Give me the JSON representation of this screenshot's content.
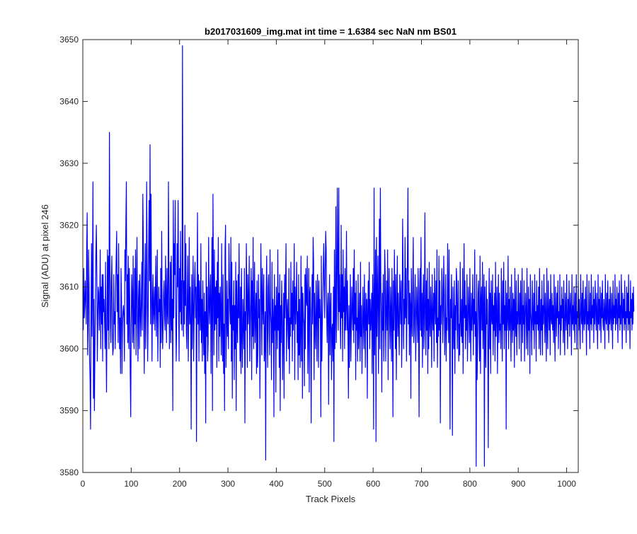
{
  "chart_data": {
    "type": "line",
    "title": "b2017031609_img.mat int time = 1.6384 sec  NaN nm BS01",
    "xlabel": "Track Pixels",
    "ylabel": "Signal (ADU) at pixel 246",
    "xlim": [
      0,
      1024
    ],
    "ylim": [
      3580,
      3650
    ],
    "x_ticks": [
      "0",
      "100",
      "200",
      "300",
      "400",
      "500",
      "600",
      "700",
      "800",
      "900",
      "1000"
    ],
    "y_ticks": [
      "3580",
      "3590",
      "3600",
      "3610",
      "3620",
      "3630",
      "3640",
      "3650"
    ],
    "grid": false,
    "series_color": "#0000ff",
    "series": [
      {
        "x_start": 1,
        "x_step": 1,
        "values": [
          3603,
          3613,
          3605,
          3607,
          3611,
          3608,
          3604,
          3616,
          3622,
          3599,
          3604,
          3616,
          3610,
          3598,
          3595,
          3587,
          3606,
          3617,
          3602,
          3612,
          3627,
          3592,
          3608,
          3590,
          3600,
          3607,
          3615,
          3620,
          3612,
          3598,
          3605,
          3610,
          3609,
          3603,
          3607,
          3616,
          3600,
          3610,
          3604,
          3612,
          3598,
          3612,
          3606,
          3608,
          3604,
          3600,
          3614,
          3602,
          3593,
          3606,
          3616,
          3603,
          3615,
          3600,
          3635,
          3615,
          3604,
          3601,
          3611,
          3615,
          3604,
          3599,
          3600,
          3612,
          3604,
          3606,
          3600,
          3610,
          3615,
          3619,
          3606,
          3612,
          3601,
          3617,
          3607,
          3600,
          3605,
          3596,
          3613,
          3608,
          3596,
          3604,
          3606,
          3607,
          3605,
          3598,
          3616,
          3611,
          3620,
          3627,
          3604,
          3612,
          3601,
          3615,
          3600,
          3613,
          3608,
          3596,
          3589,
          3604,
          3612,
          3608,
          3601,
          3615,
          3603,
          3600,
          3613,
          3604,
          3616,
          3599,
          3609,
          3618,
          3604,
          3598,
          3608,
          3611,
          3600,
          3612,
          3606,
          3602,
          3608,
          3614,
          3603,
          3625,
          3618,
          3605,
          3596,
          3609,
          3617,
          3600,
          3607,
          3627,
          3613,
          3598,
          3605,
          3616,
          3624,
          3611,
          3633,
          3604,
          3625,
          3609,
          3598,
          3608,
          3612,
          3604,
          3606,
          3610,
          3603,
          3609,
          3615,
          3602,
          3607,
          3616,
          3598,
          3604,
          3610,
          3606,
          3608,
          3597,
          3613,
          3601,
          3619,
          3606,
          3600,
          3604,
          3609,
          3611,
          3605,
          3603,
          3615,
          3608,
          3601,
          3613,
          3606,
          3604,
          3627,
          3612,
          3600,
          3606,
          3614,
          3601,
          3615,
          3603,
          3608,
          3590,
          3624,
          3605,
          3617,
          3612,
          3624,
          3607,
          3598,
          3604,
          3617,
          3610,
          3624,
          3608,
          3598,
          3613,
          3606,
          3619,
          3604,
          3611,
          3603,
          3649,
          3612,
          3602,
          3611,
          3604,
          3620,
          3607,
          3617,
          3603,
          3600,
          3609,
          3615,
          3598,
          3606,
          3618,
          3604,
          3610,
          3604,
          3587,
          3612,
          3600,
          3608,
          3615,
          3598,
          3605,
          3611,
          3614,
          3605,
          3610,
          3585,
          3608,
          3622,
          3604,
          3612,
          3598,
          3611,
          3606,
          3603,
          3617,
          3601,
          3608,
          3598,
          3611,
          3604,
          3599,
          3609,
          3596,
          3606,
          3588,
          3614,
          3602,
          3610,
          3598,
          3601,
          3618,
          3607,
          3604,
          3610,
          3612,
          3596,
          3608,
          3618,
          3590,
          3625,
          3611,
          3599,
          3616,
          3603,
          3610,
          3604,
          3611,
          3597,
          3614,
          3605,
          3618,
          3598,
          3609,
          3602,
          3610,
          3606,
          3599,
          3617,
          3603,
          3598,
          3612,
          3596,
          3604,
          3590,
          3616,
          3620,
          3597,
          3604,
          3611,
          3602,
          3608,
          3600,
          3617,
          3611,
          3606,
          3604,
          3618,
          3598,
          3614,
          3592,
          3607,
          3603,
          3611,
          3595,
          3607,
          3600,
          3614,
          3590,
          3611,
          3604,
          3601,
          3612,
          3605,
          3617,
          3604,
          3598,
          3610,
          3596,
          3613,
          3602,
          3597,
          3608,
          3604,
          3600,
          3613,
          3588,
          3606,
          3603,
          3617,
          3609,
          3597,
          3612,
          3604,
          3607,
          3615,
          3598,
          3604,
          3608,
          3613,
          3595,
          3611,
          3602,
          3618,
          3600,
          3605,
          3614,
          3601,
          3605,
          3609,
          3596,
          3611,
          3597,
          3600,
          3612,
          3605,
          3608,
          3592,
          3604,
          3617,
          3609,
          3599,
          3613,
          3607,
          3604,
          3612,
          3598,
          3601,
          3606,
          3582,
          3609,
          3615,
          3604,
          3597,
          3610,
          3612,
          3603,
          3599,
          3616,
          3606,
          3604,
          3595,
          3614,
          3601,
          3608,
          3605,
          3589,
          3612,
          3603,
          3607,
          3593,
          3610,
          3606,
          3600,
          3616,
          3603,
          3609,
          3597,
          3612,
          3590,
          3607,
          3601,
          3611,
          3606,
          3595,
          3603,
          3609,
          3592,
          3612,
          3605,
          3610,
          3617,
          3598,
          3606,
          3608,
          3603,
          3600,
          3613,
          3596,
          3605,
          3602,
          3614,
          3604,
          3609,
          3598,
          3611,
          3603,
          3607,
          3617,
          3595,
          3610,
          3604,
          3607,
          3614,
          3601,
          3606,
          3595,
          3612,
          3599,
          3608,
          3597,
          3603,
          3615,
          3598,
          3610,
          3592,
          3609,
          3605,
          3604,
          3594,
          3612,
          3600,
          3613,
          3608,
          3607,
          3615,
          3596,
          3603,
          3613,
          3593,
          3609,
          3610,
          3603,
          3588,
          3606,
          3612,
          3604,
          3618,
          3614,
          3595,
          3609,
          3603,
          3600,
          3611,
          3605,
          3598,
          3612,
          3608,
          3597,
          3611,
          3605,
          3608,
          3604,
          3589,
          3615,
          3598,
          3604,
          3607,
          3613,
          3617,
          3611,
          3605,
          3612,
          3619,
          3616,
          3606,
          3601,
          3607,
          3609,
          3591,
          3605,
          3612,
          3599,
          3606,
          3609,
          3595,
          3603,
          3604,
          3598,
          3610,
          3585,
          3616,
          3600,
          3605,
          3623,
          3601,
          3608,
          3626,
          3614,
          3603,
          3626,
          3606,
          3612,
          3604,
          3600,
          3620,
          3605,
          3612,
          3598,
          3616,
          3606,
          3610,
          3600,
          3613,
          3603,
          3607,
          3619,
          3603,
          3611,
          3602,
          3592,
          3607,
          3597,
          3604,
          3612,
          3598,
          3604,
          3610,
          3606,
          3603,
          3613,
          3601,
          3616,
          3604,
          3609,
          3595,
          3611,
          3603,
          3605,
          3598,
          3612,
          3600,
          3604,
          3609,
          3598,
          3614,
          3602,
          3607,
          3596,
          3603,
          3610,
          3604,
          3600,
          3612,
          3605,
          3597,
          3609,
          3603,
          3608,
          3592,
          3606,
          3611,
          3604,
          3614,
          3600,
          3608,
          3603,
          3605,
          3609,
          3596,
          3612,
          3607,
          3587,
          3626,
          3599,
          3606,
          3616,
          3585,
          3618,
          3602,
          3609,
          3615,
          3596,
          3607,
          3621,
          3600,
          3626,
          3611,
          3604,
          3593,
          3609,
          3603,
          3612,
          3598,
          3604,
          3616,
          3612,
          3598,
          3606,
          3611,
          3603,
          3616,
          3595,
          3608,
          3613,
          3604,
          3600,
          3610,
          3606,
          3598,
          3613,
          3604,
          3589,
          3611,
          3603,
          3616,
          3608,
          3600,
          3612,
          3595,
          3606,
          3615,
          3602,
          3609,
          3604,
          3599,
          3612,
          3608,
          3604,
          3611,
          3597,
          3604,
          3621,
          3612,
          3600,
          3608,
          3604,
          3618,
          3605,
          3613,
          3598,
          3606,
          3615,
          3626,
          3604,
          3611,
          3599,
          3609,
          3607,
          3592,
          3613,
          3605,
          3602,
          3611,
          3618,
          3601,
          3603,
          3608,
          3612,
          3598,
          3604,
          3610,
          3606,
          3601,
          3613,
          3605,
          3589,
          3609,
          3613,
          3603,
          3618,
          3602,
          3609,
          3597,
          3608,
          3612,
          3600,
          3604,
          3622,
          3606,
          3599,
          3611,
          3603,
          3613,
          3596,
          3608,
          3600,
          3614,
          3604,
          3602,
          3610,
          3606,
          3597,
          3612,
          3605,
          3603,
          3609,
          3598,
          3613,
          3607,
          3604,
          3611,
          3601,
          3616,
          3597,
          3605,
          3602,
          3615,
          3603,
          3611,
          3588,
          3607,
          3604,
          3613,
          3610,
          3601,
          3606,
          3615,
          3609,
          3599,
          3604,
          3612,
          3598,
          3605,
          3603,
          3617,
          3608,
          3601,
          3616,
          3604,
          3587,
          3608,
          3605,
          3612,
          3603,
          3586,
          3610,
          3604,
          3600,
          3611,
          3596,
          3607,
          3603,
          3613,
          3611,
          3600,
          3606,
          3611,
          3598,
          3604,
          3599,
          3614,
          3605,
          3602,
          3608,
          3601,
          3613,
          3596,
          3604,
          3617,
          3605,
          3611,
          3600,
          3607,
          3603,
          3612,
          3598,
          3604,
          3610,
          3606,
          3601,
          3613,
          3604,
          3598,
          3609,
          3603,
          3606,
          3612,
          3599,
          3608,
          3604,
          3616,
          3602,
          3606,
          3581,
          3612,
          3595,
          3601,
          3609,
          3611,
          3604,
          3598,
          3615,
          3596,
          3608,
          3610,
          3603,
          3614,
          3600,
          3606,
          3612,
          3581,
          3610,
          3601,
          3597,
          3611,
          3604,
          3608,
          3601,
          3584,
          3606,
          3613,
          3600,
          3609,
          3596,
          3611,
          3605,
          3604,
          3612,
          3599,
          3607,
          3603,
          3609,
          3598,
          3614,
          3602,
          3606,
          3610,
          3596,
          3605,
          3612,
          3601,
          3609,
          3603,
          3604,
          3600,
          3613,
          3606,
          3598,
          3611,
          3604,
          3614,
          3600,
          3607,
          3603,
          3611,
          3587,
          3609,
          3603,
          3605,
          3615,
          3600,
          3608,
          3603,
          3610,
          3604,
          3598,
          3612,
          3605,
          3601,
          3609,
          3603,
          3608,
          3597,
          3613,
          3604,
          3602,
          3611,
          3599,
          3606,
          3604,
          3612,
          3605,
          3600,
          3609,
          3604,
          3611,
          3598,
          3606,
          3613,
          3601,
          3607,
          3604,
          3611,
          3598,
          3605,
          3609,
          3606,
          3600,
          3613,
          3604,
          3599,
          3610,
          3603,
          3608,
          3596,
          3612,
          3606,
          3604,
          3599,
          3611,
          3605,
          3603,
          3609,
          3600,
          3612,
          3604,
          3606,
          3598,
          3611,
          3604,
          3607,
          3603,
          3610,
          3600,
          3613,
          3605,
          3599,
          3608,
          3603,
          3611,
          3599,
          3607,
          3604,
          3612,
          3606,
          3601,
          3609,
          3605,
          3598,
          3613,
          3604,
          3600,
          3611,
          3606,
          3603,
          3608,
          3599,
          3612,
          3605,
          3604,
          3609,
          3603,
          3607,
          3601,
          3612,
          3604,
          3598,
          3610,
          3606,
          3602,
          3609,
          3605,
          3611,
          3600,
          3606,
          3604,
          3612,
          3599,
          3607,
          3603,
          3610,
          3605,
          3608,
          3601,
          3611,
          3604,
          3599,
          3609,
          3606,
          3603,
          3612,
          3605,
          3600,
          3608,
          3604,
          3611,
          3602,
          3606,
          3609,
          3605,
          3599,
          3612,
          3604,
          3607,
          3603,
          3610,
          3605,
          3601,
          3609,
          3604,
          3612,
          3600,
          3606,
          3605,
          3611,
          3603,
          3608,
          3604,
          3600,
          3612,
          3606,
          3604,
          3609,
          3601,
          3611,
          3605,
          3603,
          3608,
          3604,
          3610,
          3606,
          3599,
          3612,
          3604,
          3606,
          3603,
          3611,
          3605,
          3600,
          3609,
          3604,
          3612,
          3603,
          3607,
          3605,
          3610,
          3601,
          3608,
          3604,
          3611,
          3606,
          3603,
          3609,
          3605,
          3600,
          3612,
          3604,
          3608,
          3603,
          3610,
          3606,
          3601,
          3609,
          3605,
          3611,
          3604,
          3603,
          3608,
          3606,
          3600,
          3612,
          3605,
          3604,
          3609,
          3603,
          3611,
          3606,
          3601,
          3608,
          3604,
          3610,
          3605,
          3603,
          3609,
          3606,
          3600,
          3611,
          3604,
          3607,
          3605,
          3612,
          3603,
          3608,
          3604,
          3610,
          3606,
          3601,
          3609,
          3605,
          3611,
          3603,
          3607,
          3604,
          3612,
          3606,
          3600,
          3609,
          3605,
          3608,
          3603,
          3611,
          3604,
          3606,
          3601,
          3610,
          3605,
          3609,
          3603,
          3612,
          3604,
          3606,
          3600,
          3611,
          3605,
          3608,
          3603,
          3609,
          3604,
          3610,
          3606
        ]
      }
    ]
  }
}
